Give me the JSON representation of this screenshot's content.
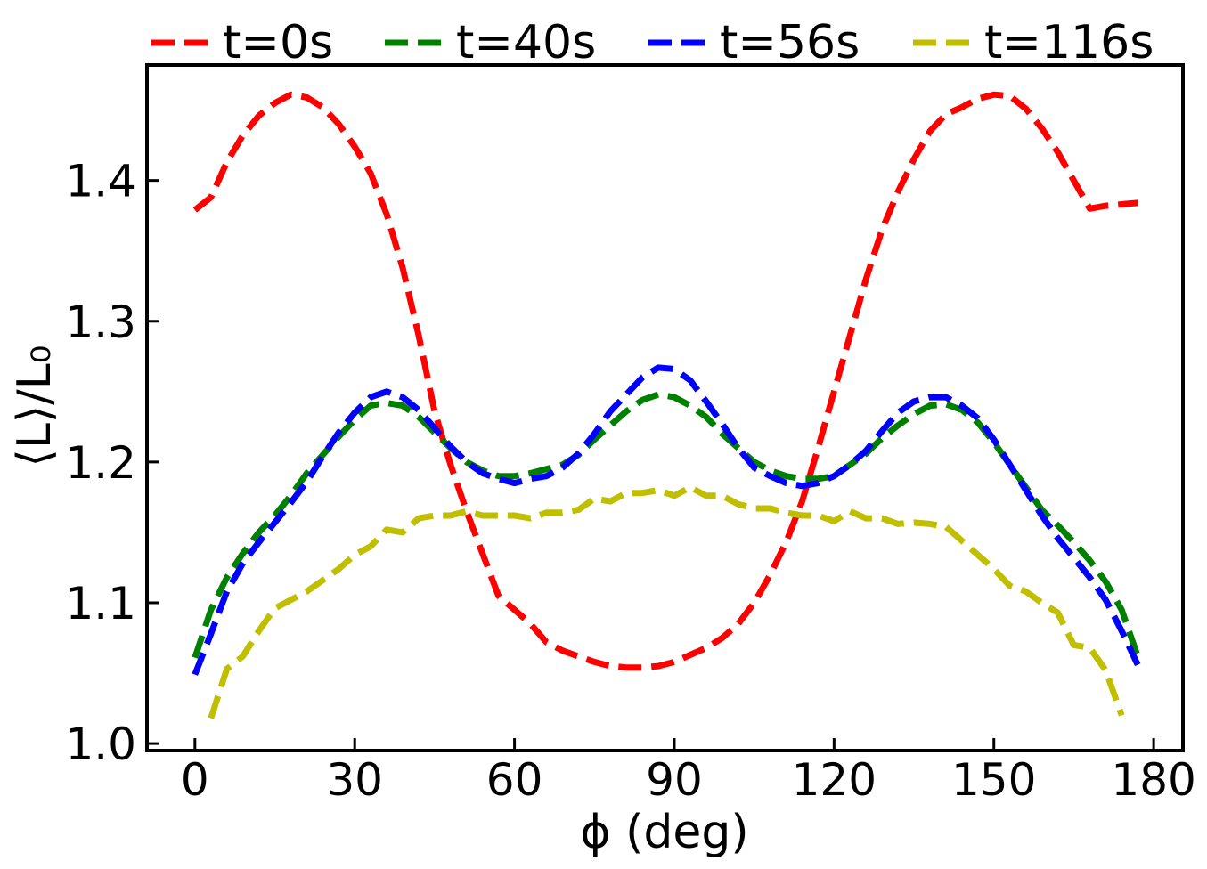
{
  "chart_data": {
    "type": "line",
    "title": "",
    "xlabel": "ϕ (deg)",
    "ylabel": "⟨L⟩/L₀",
    "xlim": [
      -9,
      185.5
    ],
    "ylim": [
      0.995,
      1.482
    ],
    "xticks": [
      0,
      30,
      60,
      90,
      120,
      150,
      180
    ],
    "xtick_labels": [
      "0",
      "30",
      "60",
      "90",
      "120",
      "150",
      "180"
    ],
    "yticks": [
      1.0,
      1.1,
      1.2,
      1.3,
      1.4
    ],
    "ytick_labels": [
      "1.0",
      "1.1",
      "1.2",
      "1.3",
      "1.4"
    ],
    "grid": false,
    "legend_position": "top, outside plot, single row",
    "series": [
      {
        "name": "t=0s",
        "color": "#ff0000",
        "x": [
          0,
          3,
          6,
          9,
          12,
          15,
          18,
          21,
          24,
          27,
          30,
          33,
          36,
          39,
          42,
          45,
          48,
          51,
          54,
          57,
          60,
          63,
          66,
          69,
          72,
          75,
          78,
          81,
          84,
          87,
          90,
          93,
          96,
          99,
          102,
          105,
          108,
          111,
          114,
          117,
          120,
          123,
          126,
          129,
          132,
          135,
          138,
          141,
          144,
          147,
          150,
          153,
          156,
          159,
          162,
          165,
          168,
          171,
          174,
          177
        ],
        "values": [
          1.379,
          1.388,
          1.413,
          1.432,
          1.446,
          1.455,
          1.461,
          1.459,
          1.452,
          1.44,
          1.424,
          1.405,
          1.376,
          1.338,
          1.29,
          1.236,
          1.198,
          1.165,
          1.135,
          1.105,
          1.095,
          1.085,
          1.072,
          1.066,
          1.062,
          1.058,
          1.055,
          1.054,
          1.054,
          1.055,
          1.058,
          1.063,
          1.068,
          1.075,
          1.085,
          1.1,
          1.12,
          1.143,
          1.172,
          1.21,
          1.25,
          1.29,
          1.33,
          1.365,
          1.392,
          1.415,
          1.435,
          1.447,
          1.452,
          1.458,
          1.461,
          1.46,
          1.451,
          1.437,
          1.42,
          1.4,
          1.38,
          1.382,
          1.383,
          1.384
        ]
      },
      {
        "name": "t=40s",
        "color": "#008000",
        "x": [
          0,
          3,
          6,
          9,
          12,
          15,
          18,
          21,
          24,
          27,
          30,
          33,
          36,
          39,
          42,
          45,
          48,
          51,
          54,
          57,
          60,
          63,
          66,
          69,
          72,
          75,
          78,
          81,
          84,
          87,
          90,
          93,
          96,
          99,
          102,
          105,
          108,
          111,
          114,
          117,
          120,
          123,
          126,
          129,
          132,
          135,
          138,
          141,
          144,
          147,
          150,
          153,
          156,
          159,
          162,
          165,
          168,
          171,
          174,
          177
        ],
        "values": [
          1.061,
          1.095,
          1.118,
          1.135,
          1.15,
          1.162,
          1.176,
          1.192,
          1.205,
          1.218,
          1.23,
          1.24,
          1.242,
          1.24,
          1.232,
          1.221,
          1.21,
          1.2,
          1.194,
          1.19,
          1.19,
          1.192,
          1.195,
          1.198,
          1.205,
          1.216,
          1.226,
          1.236,
          1.244,
          1.248,
          1.246,
          1.24,
          1.232,
          1.22,
          1.21,
          1.2,
          1.194,
          1.19,
          1.188,
          1.188,
          1.19,
          1.198,
          1.206,
          1.217,
          1.226,
          1.234,
          1.24,
          1.241,
          1.237,
          1.228,
          1.214,
          1.198,
          1.182,
          1.166,
          1.155,
          1.143,
          1.13,
          1.115,
          1.095,
          1.062
        ]
      },
      {
        "name": "t=56s",
        "color": "#0000ff",
        "x": [
          0,
          3,
          6,
          9,
          12,
          15,
          18,
          21,
          24,
          27,
          30,
          33,
          36,
          39,
          42,
          45,
          48,
          51,
          54,
          57,
          60,
          63,
          66,
          69,
          72,
          75,
          78,
          81,
          84,
          87,
          90,
          93,
          96,
          99,
          102,
          105,
          108,
          111,
          114,
          117,
          120,
          123,
          126,
          129,
          132,
          135,
          138,
          141,
          144,
          147,
          150,
          153,
          156,
          159,
          162,
          165,
          168,
          171,
          174,
          177
        ],
        "values": [
          1.049,
          1.078,
          1.108,
          1.128,
          1.143,
          1.157,
          1.171,
          1.186,
          1.204,
          1.221,
          1.235,
          1.246,
          1.25,
          1.246,
          1.237,
          1.224,
          1.211,
          1.2,
          1.192,
          1.188,
          1.185,
          1.188,
          1.19,
          1.196,
          1.206,
          1.22,
          1.236,
          1.248,
          1.26,
          1.267,
          1.266,
          1.258,
          1.243,
          1.227,
          1.21,
          1.196,
          1.19,
          1.185,
          1.183,
          1.185,
          1.19,
          1.198,
          1.208,
          1.222,
          1.235,
          1.243,
          1.246,
          1.246,
          1.24,
          1.231,
          1.216,
          1.198,
          1.18,
          1.162,
          1.146,
          1.132,
          1.118,
          1.102,
          1.08,
          1.056
        ]
      },
      {
        "name": "t=116s",
        "color": "#bfbf00",
        "x": [
          3,
          6,
          9,
          12,
          15,
          18,
          21,
          24,
          27,
          30,
          33,
          36,
          39,
          42,
          45,
          48,
          51,
          54,
          57,
          60,
          63,
          66,
          69,
          72,
          75,
          78,
          81,
          84,
          87,
          90,
          93,
          96,
          99,
          102,
          105,
          108,
          111,
          114,
          117,
          120,
          123,
          126,
          129,
          132,
          135,
          138,
          141,
          144,
          147,
          150,
          153,
          156,
          159,
          162,
          165,
          168,
          171,
          174
        ],
        "values": [
          1.018,
          1.053,
          1.062,
          1.08,
          1.096,
          1.102,
          1.108,
          1.116,
          1.124,
          1.134,
          1.14,
          1.152,
          1.15,
          1.16,
          1.162,
          1.162,
          1.165,
          1.162,
          1.162,
          1.162,
          1.16,
          1.164,
          1.164,
          1.166,
          1.174,
          1.172,
          1.178,
          1.178,
          1.18,
          1.176,
          1.182,
          1.176,
          1.176,
          1.17,
          1.167,
          1.167,
          1.164,
          1.162,
          1.162,
          1.158,
          1.165,
          1.16,
          1.16,
          1.156,
          1.157,
          1.156,
          1.154,
          1.144,
          1.134,
          1.124,
          1.112,
          1.108,
          1.1,
          1.093,
          1.07,
          1.068,
          1.052,
          1.02
        ]
      }
    ]
  }
}
